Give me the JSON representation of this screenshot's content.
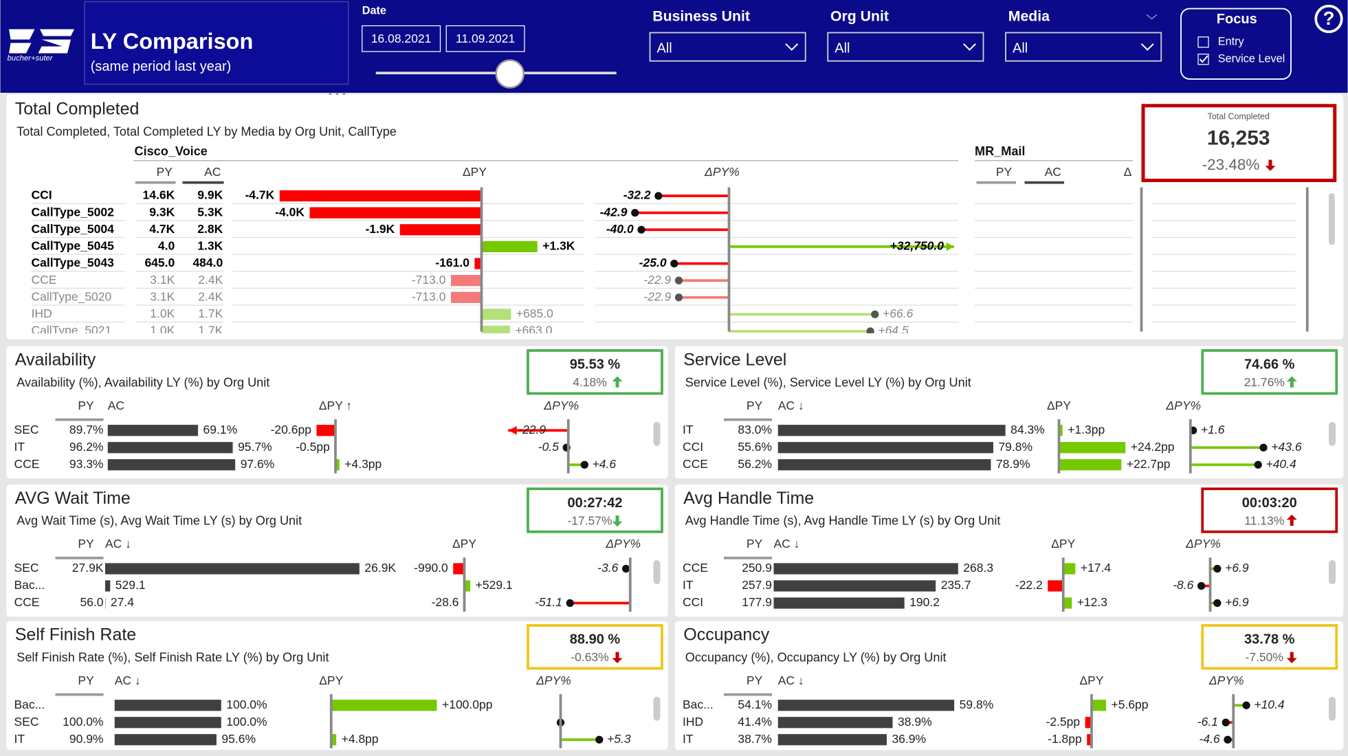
{
  "header": {
    "logo": "bucher+suter",
    "title": "LY Comparison",
    "subtitle": "(same period last year)",
    "date_label": "Date",
    "date_from": "16.08.2021",
    "date_to": "11.09.2021",
    "filters": [
      {
        "label": "Business Unit",
        "value": "All"
      },
      {
        "label": "Org Unit",
        "value": "All"
      },
      {
        "label": "Media",
        "value": "All"
      }
    ],
    "focus": {
      "title": "Focus",
      "options": [
        {
          "label": "Entry",
          "checked": false
        },
        {
          "label": "Service Level",
          "checked": true
        }
      ]
    },
    "help": "?"
  },
  "total": {
    "title": "Total Completed",
    "subtitle": "Total Completed, Total Completed LY by Media by Org Unit, CallType",
    "group": "Cisco_Voice",
    "group2": "MR_Mail",
    "columns": [
      "PY",
      "AC",
      "ΔPY",
      "ΔPY%"
    ],
    "columns2": [
      "PY",
      "AC",
      "Δ"
    ],
    "kpi": {
      "label": "Total Completed",
      "value": "16,253",
      "delta": "-23.48%",
      "trend": "down",
      "arrow_color": "#c00000",
      "border": "#c00000"
    },
    "rows": [
      {
        "label": "CCI",
        "py": "14.6K",
        "ac": "9.9K",
        "dpy": -4700,
        "dpy_label": "-4.7K",
        "dpct": -32.2,
        "dpct_label": "-32.2",
        "focus": true
      },
      {
        "label": "CallType_5002",
        "py": "9.3K",
        "ac": "5.3K",
        "dpy": -4000,
        "dpy_label": "-4.0K",
        "dpct": -42.9,
        "dpct_label": "-42.9",
        "focus": true
      },
      {
        "label": "CallType_5004",
        "py": "4.7K",
        "ac": "2.8K",
        "dpy": -1900,
        "dpy_label": "-1.9K",
        "dpct": -40.0,
        "dpct_label": "-40.0",
        "focus": true
      },
      {
        "label": "CallType_5045",
        "py": "4.0",
        "ac": "1.3K",
        "dpy": 1300,
        "dpy_label": "+1.3K",
        "dpct": 32750.0,
        "dpct_label": "+32,750.0",
        "focus": true
      },
      {
        "label": "CallType_5043",
        "py": "645.0",
        "ac": "484.0",
        "dpy": -161.0,
        "dpy_label": "-161.0",
        "dpct": -25.0,
        "dpct_label": "-25.0",
        "focus": true
      },
      {
        "label": "CCE",
        "py": "3.1K",
        "ac": "2.4K",
        "dpy": -713.0,
        "dpy_label": "-713.0",
        "dpct": -22.9,
        "dpct_label": "-22.9",
        "focus": false
      },
      {
        "label": "CallType_5020",
        "py": "3.1K",
        "ac": "2.4K",
        "dpy": -713.0,
        "dpy_label": "-713.0",
        "dpct": -22.9,
        "dpct_label": "-22.9",
        "focus": false
      },
      {
        "label": "IHD",
        "py": "1.0K",
        "ac": "1.7K",
        "dpy": 685.0,
        "dpy_label": "+685.0",
        "dpct": 66.6,
        "dpct_label": "+66.6",
        "focus": false
      },
      {
        "label": "CallType_5021",
        "py": "1.0K",
        "ac": "1.7K",
        "dpy": 663.0,
        "dpy_label": "+663.0",
        "dpct": 64.5,
        "dpct_label": "+64.5",
        "focus": false
      }
    ]
  },
  "panels": [
    {
      "title": "Availability",
      "subtitle": "Availability (%), Availability LY (%) by Org Unit",
      "columns": [
        "PY",
        "AC",
        "ΔPY ↑",
        "ΔPY%"
      ],
      "kpi": {
        "value": "95.53 %",
        "delta": "4.18%",
        "trend": "up",
        "arrow_color": "#4caf50",
        "border": "#4caf50"
      },
      "rows": [
        {
          "label": "SEC",
          "py": "89.7%",
          "ac": 69.1,
          "ac_label": "69.1%",
          "dpy": -20.6,
          "dpy_label": "-20.6pp",
          "dpct": -22.9,
          "dpct_label": "-22.9"
        },
        {
          "label": "IT",
          "py": "96.2%",
          "ac": 95.7,
          "ac_label": "95.7%",
          "dpy": -0.5,
          "dpy_label": "-0.5pp",
          "dpct": -0.5,
          "dpct_label": "-0.5"
        },
        {
          "label": "CCE",
          "py": "93.3%",
          "ac": 97.6,
          "ac_label": "97.6%",
          "dpy": 4.3,
          "dpy_label": "+4.3pp",
          "dpct": 4.6,
          "dpct_label": "+4.6"
        }
      ]
    },
    {
      "title": "Service Level",
      "subtitle": "Service Level (%), Service Level LY (%) by Org Unit",
      "columns": [
        "PY",
        "AC ↓",
        "ΔPY",
        "ΔPY%"
      ],
      "kpi": {
        "value": "74.66 %",
        "delta": "21.76%",
        "trend": "up",
        "arrow_color": "#4caf50",
        "border": "#4caf50"
      },
      "rows": [
        {
          "label": "IT",
          "py": "83.0%",
          "ac": 84.3,
          "ac_label": "84.3%",
          "dpy": 1.3,
          "dpy_label": "+1.3pp",
          "dpct": 1.6,
          "dpct_label": "+1.6"
        },
        {
          "label": "CCI",
          "py": "55.6%",
          "ac": 79.8,
          "ac_label": "79.8%",
          "dpy": 24.2,
          "dpy_label": "+24.2pp",
          "dpct": 43.6,
          "dpct_label": "+43.6"
        },
        {
          "label": "CCE",
          "py": "56.2%",
          "ac": 78.9,
          "ac_label": "78.9%",
          "dpy": 22.7,
          "dpy_label": "+22.7pp",
          "dpct": 40.4,
          "dpct_label": "+40.4"
        }
      ]
    },
    {
      "title": "AVG Wait Time",
      "subtitle": "Avg Wait Time (s), Avg Wait Time LY (s) by Org Unit",
      "columns": [
        "PY",
        "AC ↓",
        "ΔPY",
        "ΔPY%"
      ],
      "kpi": {
        "value": "00:27:42",
        "delta": "-17.57%",
        "trend": "down",
        "arrow_color": "#4caf50",
        "border": "#4caf50"
      },
      "rows": [
        {
          "label": "SEC",
          "py": "27.9K",
          "ac": 26900,
          "ac_label": "26.9K",
          "dpy": -990.0,
          "dpy_label": "-990.0",
          "dpct": -3.6,
          "dpct_label": "-3.6"
        },
        {
          "label": "Bac...",
          "py": null,
          "ac": 529.1,
          "ac_label": "529.1",
          "dpy": 529.1,
          "dpy_label": "+529.1",
          "dpct": null,
          "dpct_label": null
        },
        {
          "label": "CCE",
          "py": "56.0",
          "ac": 27.4,
          "ac_label": "27.4",
          "dpy": -28.6,
          "dpy_label": "-28.6",
          "dpct": -51.1,
          "dpct_label": "-51.1"
        }
      ]
    },
    {
      "title": "Avg Handle Time",
      "subtitle": "Avg Handle Time (s), Avg Handle Time LY (s) by Org Unit",
      "columns": [
        "PY",
        "AC ↓",
        "ΔPY",
        "ΔPY%"
      ],
      "kpi": {
        "value": "00:03:20",
        "delta": "11.13%",
        "trend": "up",
        "arrow_color": "#c00000",
        "border": "#c00000"
      },
      "rows": [
        {
          "label": "CCE",
          "py": "250.9",
          "ac": 268.3,
          "ac_label": "268.3",
          "dpy": 17.4,
          "dpy_label": "+17.4",
          "dpct": 6.9,
          "dpct_label": "+6.9"
        },
        {
          "label": "IT",
          "py": "257.9",
          "ac": 235.7,
          "ac_label": "235.7",
          "dpy": -22.2,
          "dpy_label": "-22.2",
          "dpct": -8.6,
          "dpct_label": "-8.6"
        },
        {
          "label": "CCI",
          "py": "177.9",
          "ac": 190.2,
          "ac_label": "190.2",
          "dpy": 12.3,
          "dpy_label": "+12.3",
          "dpct": 6.9,
          "dpct_label": "+6.9"
        }
      ]
    },
    {
      "title": "Self Finish Rate",
      "subtitle": "Self Finish Rate (%), Self Finish Rate LY (%) by Org Unit",
      "columns": [
        "PY",
        "AC ↓",
        "ΔPY",
        "ΔPY%"
      ],
      "kpi": {
        "value": "88.90 %",
        "delta": "-0.63%",
        "trend": "down",
        "arrow_color": "#c00000",
        "border": "#f0c419"
      },
      "rows": [
        {
          "label": "Bac...",
          "py": null,
          "ac": 100.0,
          "ac_label": "100.0%",
          "dpy": 100.0,
          "dpy_label": "+100.0pp",
          "dpct": null,
          "dpct_label": null
        },
        {
          "label": "SEC",
          "py": "100.0%",
          "ac": 100.0,
          "ac_label": "100.0%",
          "dpy": null,
          "dpy_label": null,
          "dpct": 0,
          "dpct_label": null
        },
        {
          "label": "IT",
          "py": "90.9%",
          "ac": 95.6,
          "ac_label": "95.6%",
          "dpy": 4.8,
          "dpy_label": "+4.8pp",
          "dpct": 5.3,
          "dpct_label": "+5.3"
        }
      ]
    },
    {
      "title": "Occupancy",
      "subtitle": "Occupancy (%), Occupancy LY (%) by Org Unit",
      "columns": [
        "PY",
        "AC ↓",
        "ΔPY",
        "ΔPY%"
      ],
      "kpi": {
        "value": "33.78 %",
        "delta": "-7.50%",
        "trend": "down",
        "arrow_color": "#c00000",
        "border": "#f0c419"
      },
      "rows": [
        {
          "label": "Bac...",
          "py": "54.1%",
          "ac": 59.8,
          "ac_label": "59.8%",
          "dpy": 5.6,
          "dpy_label": "+5.6pp",
          "dpct": 10.4,
          "dpct_label": "+10.4"
        },
        {
          "label": "IHD",
          "py": "41.4%",
          "ac": 38.9,
          "ac_label": "38.9%",
          "dpy": -2.5,
          "dpy_label": "-2.5pp",
          "dpct": -6.1,
          "dpct_label": "-6.1"
        },
        {
          "label": "IT",
          "py": "38.7%",
          "ac": 36.9,
          "ac_label": "36.9%",
          "dpy": -1.8,
          "dpy_label": "-1.8pp",
          "dpct": -4.6,
          "dpct_label": "-4.6"
        }
      ]
    }
  ]
}
